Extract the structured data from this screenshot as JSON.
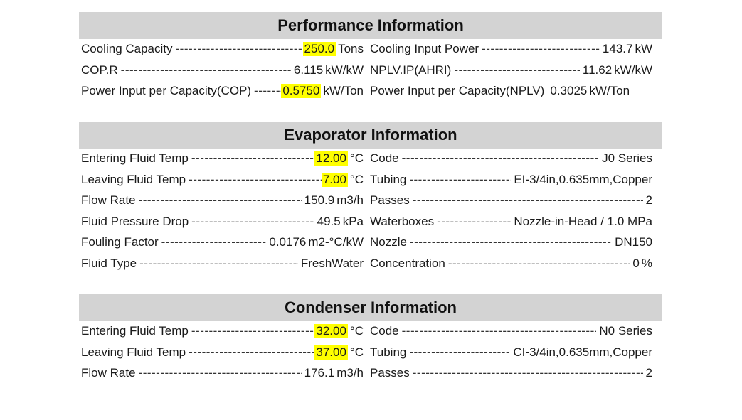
{
  "highlight_color": "#ffff00",
  "header_bg": "#d3d3d3",
  "performance": {
    "title": "Performance Information",
    "rows": [
      {
        "left": {
          "label": "Cooling Capacity",
          "value": "250.0",
          "unit": "Tons"
        },
        "right": {
          "label": "Cooling Input Power",
          "value": "143.7",
          "unit": "kW"
        }
      },
      {
        "left": {
          "label": "COP.R",
          "value": "6.115",
          "unit": "kW/kW"
        },
        "right": {
          "label": "NPLV.IP(AHRI)",
          "value": "11.62",
          "unit": "kW/kW"
        }
      },
      {
        "left": {
          "label": "Power Input per Capacity(COP)",
          "value": "0.5750",
          "unit": "kW/Ton"
        },
        "right": {
          "label": "Power Input per Capacity(NPLV)",
          "value": "0.3025",
          "unit": "kW/Ton"
        }
      }
    ]
  },
  "evaporator": {
    "title": "Evaporator Information",
    "rows": [
      {
        "left": {
          "label": "Entering Fluid Temp",
          "value": "12.00",
          "unit": "°C"
        },
        "right": {
          "label": "Code",
          "value": "J0 Series",
          "unit": ""
        }
      },
      {
        "left": {
          "label": "Leaving Fluid Temp",
          "value": "7.00",
          "unit": "°C"
        },
        "right": {
          "label": "Tubing",
          "value": "EI-3/4in,0.635mm,Copper",
          "unit": ""
        }
      },
      {
        "left": {
          "label": "Flow Rate",
          "value": "150.9",
          "unit": "m3/h"
        },
        "right": {
          "label": "Passes",
          "value": "2",
          "unit": ""
        }
      },
      {
        "left": {
          "label": "Fluid Pressure Drop",
          "value": "49.5",
          "unit": "kPa"
        },
        "right": {
          "label": "Waterboxes",
          "value": "Nozzle-in-Head / 1.0 MPa",
          "unit": ""
        }
      },
      {
        "left": {
          "label": "Fouling Factor",
          "value": "0.0176",
          "unit": "m2-°C/kW"
        },
        "right": {
          "label": "Nozzle",
          "value": "DN150",
          "unit": ""
        }
      },
      {
        "left": {
          "label": "Fluid Type",
          "value": "FreshWater",
          "unit": ""
        },
        "right": {
          "label": "Concentration",
          "value": "0",
          "unit": "%"
        }
      }
    ]
  },
  "condenser": {
    "title": "Condenser Information",
    "rows": [
      {
        "left": {
          "label": "Entering Fluid Temp",
          "value": "32.00",
          "unit": "°C"
        },
        "right": {
          "label": "Code",
          "value": "N0 Series",
          "unit": ""
        }
      },
      {
        "left": {
          "label": "Leaving Fluid Temp",
          "value": "37.00",
          "unit": "°C"
        },
        "right": {
          "label": "Tubing",
          "value": "CI-3/4in,0.635mm,Copper",
          "unit": ""
        }
      },
      {
        "left": {
          "label": "Flow Rate",
          "value": "176.1",
          "unit": "m3/h"
        },
        "right": {
          "label": "Passes",
          "value": "2",
          "unit": ""
        }
      }
    ]
  }
}
